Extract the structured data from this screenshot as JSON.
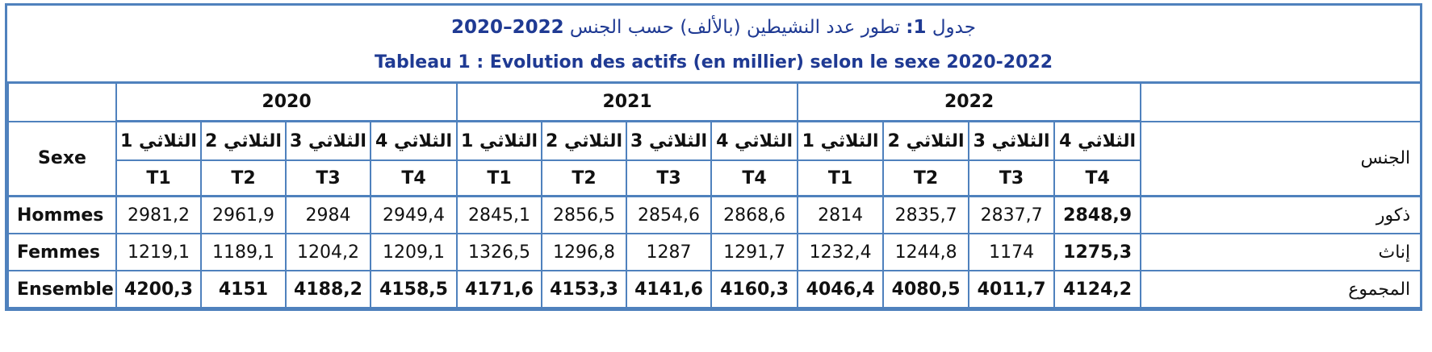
{
  "title_ar": {
    "prefix": "جدول",
    "num": "1:",
    "text": "تطور عدد النشيطين (بالألف) حسب الجنس",
    "years": "2022–2020"
  },
  "title_fr": "Tableau 1 : Evolution des actifs (en millier) selon le sexe 2020-2022",
  "header": {
    "sexe": "Sexe",
    "jins": "الجنس",
    "years": [
      "2020",
      "2021",
      "2022"
    ],
    "quarters_ar": [
      "الثلاثي 1",
      "الثلاثي 2",
      "الثلاثي 3",
      "الثلاثي 4"
    ],
    "quarters_code": [
      "T1",
      "T2",
      "T3",
      "T4"
    ]
  },
  "rows": [
    {
      "fr": "Hommes",
      "ar": "ذكور",
      "values": [
        "2981,2",
        "2961,9",
        "2984",
        "2949,4",
        "2845,1",
        "2856,5",
        "2854,6",
        "2868,6",
        "2814",
        "2835,7",
        "2837,7",
        "2848,9"
      ]
    },
    {
      "fr": "Femmes",
      "ar": "إناث",
      "values": [
        "1219,1",
        "1189,1",
        "1204,2",
        "1209,1",
        "1326,5",
        "1296,8",
        "1287",
        "1291,7",
        "1232,4",
        "1244,8",
        "1174",
        "1275,3"
      ]
    },
    {
      "fr": "Ensemble",
      "ar": "المجموع",
      "values": [
        "4200,3",
        "4151",
        "4188,2",
        "4158,5",
        "4171,6",
        "4153,3",
        "4141,6",
        "4160,3",
        "4046,4",
        "4080,5",
        "4011,7",
        "4124,2"
      ]
    }
  ]
}
